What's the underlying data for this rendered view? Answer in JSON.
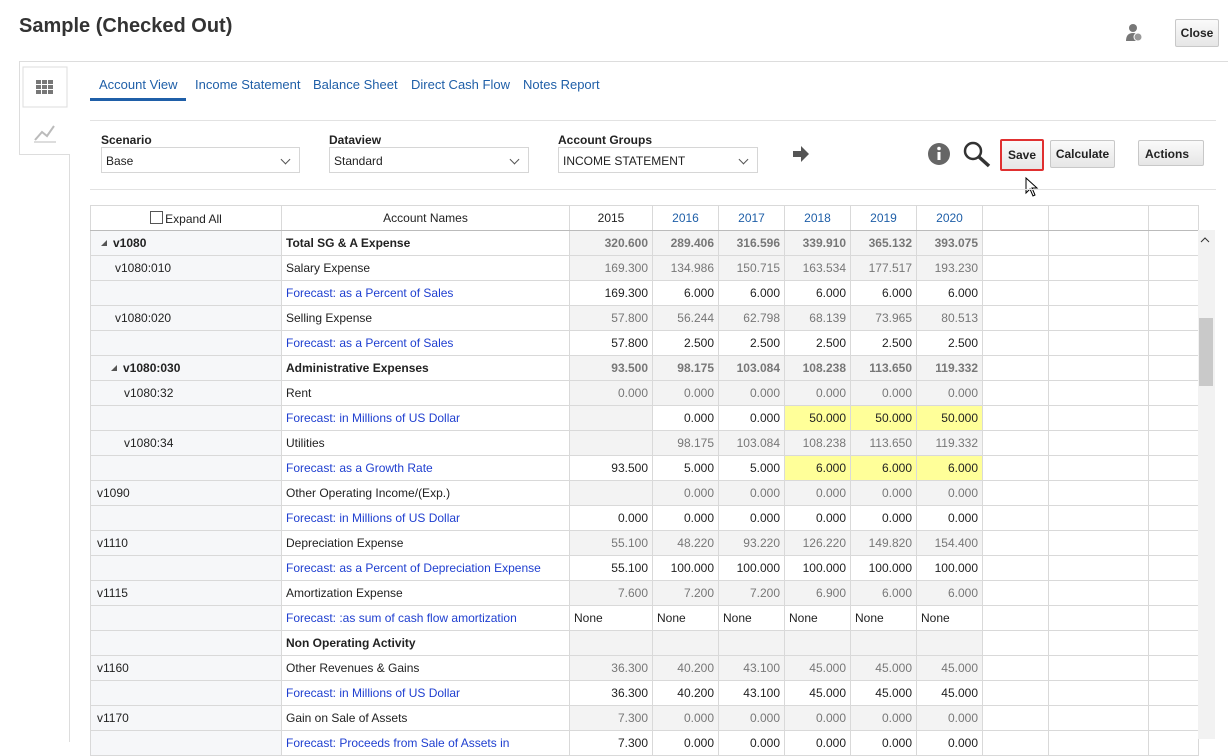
{
  "header": {
    "title": "Sample (Checked Out)",
    "close": "Close"
  },
  "tabs": [
    "Account View",
    "Income Statement",
    "Balance Sheet",
    "Direct Cash Flow",
    "Notes Report"
  ],
  "filters": [
    {
      "label": "Scenario",
      "value": "Base"
    },
    {
      "label": "Dataview",
      "value": "Standard"
    },
    {
      "label": "Account Groups",
      "value": "INCOME STATEMENT"
    }
  ],
  "buttons": {
    "save": "Save",
    "calculate": "Calculate",
    "actions": "Actions"
  },
  "table": {
    "headers": [
      "Expand All",
      "Account Names",
      "2015",
      "2016",
      "2017",
      "2018",
      "2019",
      "2020"
    ],
    "rows": [
      {
        "id": "v1080",
        "name": "Total SG & A Expense",
        "kind": "total",
        "depth": 0,
        "expandable": true,
        "values": [
          "320.600",
          "289.406",
          "316.596",
          "339.910",
          "365.132",
          "393.075"
        ]
      },
      {
        "id": "v1080:010",
        "name": "Salary Expense",
        "kind": "actual",
        "depth": 1,
        "values": [
          "169.300",
          "134.986",
          "150.715",
          "163.534",
          "177.517",
          "193.230"
        ]
      },
      {
        "name": "Forecast: as a Percent of Sales",
        "kind": "forecast",
        "values": [
          "169.300",
          "6.000",
          "6.000",
          "6.000",
          "6.000",
          "6.000"
        ]
      },
      {
        "id": "v1080:020",
        "name": "Selling Expense",
        "kind": "actual",
        "depth": 1,
        "values": [
          "57.800",
          "56.244",
          "62.798",
          "68.139",
          "73.965",
          "80.513"
        ]
      },
      {
        "name": "Forecast: as a Percent of Sales",
        "kind": "forecast",
        "values": [
          "57.800",
          "2.500",
          "2.500",
          "2.500",
          "2.500",
          "2.500"
        ]
      },
      {
        "id": "v1080:030",
        "name": "Administrative Expenses",
        "kind": "total",
        "depth": 1,
        "expandable": true,
        "values": [
          "93.500",
          "98.175",
          "103.084",
          "108.238",
          "113.650",
          "119.332"
        ]
      },
      {
        "id": "v1080:32",
        "name": "Rent",
        "kind": "actual",
        "depth": 2,
        "values": [
          "0.000",
          "0.000",
          "0.000",
          "0.000",
          "0.000",
          "0.000"
        ]
      },
      {
        "name": "Forecast: in Millions of US Dollar",
        "kind": "forecast",
        "highlight": true,
        "values": [
          null,
          "0.000",
          "0.000",
          "50.000",
          "50.000",
          "50.000"
        ]
      },
      {
        "id": "v1080:34",
        "name": "Utilities",
        "kind": "actual",
        "depth": 2,
        "values": [
          null,
          "98.175",
          "103.084",
          "108.238",
          "113.650",
          "119.332"
        ]
      },
      {
        "name": "Forecast: as a Growth Rate",
        "kind": "forecast",
        "highlight": true,
        "values": [
          "93.500",
          "5.000",
          "5.000",
          "6.000",
          "6.000",
          "6.000"
        ]
      },
      {
        "id": "v1090",
        "name": "Other Operating Income/(Exp.)",
        "kind": "actual",
        "depth": 0,
        "values": [
          null,
          "0.000",
          "0.000",
          "0.000",
          "0.000",
          "0.000"
        ]
      },
      {
        "name": "Forecast: in Millions of US Dollar",
        "kind": "forecast",
        "values": [
          "0.000",
          "0.000",
          "0.000",
          "0.000",
          "0.000",
          "0.000"
        ]
      },
      {
        "id": "v1110",
        "name": "Depreciation Expense",
        "kind": "actual",
        "depth": 0,
        "values": [
          "55.100",
          "48.220",
          "93.220",
          "126.220",
          "149.820",
          "154.400"
        ]
      },
      {
        "name": "Forecast: as a Percent of Depreciation Expense",
        "kind": "forecast",
        "values": [
          "55.100",
          "100.000",
          "100.000",
          "100.000",
          "100.000",
          "100.000"
        ]
      },
      {
        "id": "v1115",
        "name": "Amortization Expense",
        "kind": "actual",
        "depth": 0,
        "values": [
          "7.600",
          "7.200",
          "7.200",
          "6.900",
          "6.000",
          "6.000"
        ]
      },
      {
        "name": "Forecast: :as sum of cash flow amortization",
        "kind": "forecast",
        "text": true,
        "values": [
          "None",
          "None",
          "None",
          "None",
          "None",
          "None"
        ]
      },
      {
        "name": "Non Operating Activity",
        "kind": "section",
        "values": [
          null,
          null,
          null,
          null,
          null,
          null
        ]
      },
      {
        "id": "v1160",
        "name": "Other Revenues & Gains",
        "kind": "actual",
        "depth": 0,
        "values": [
          "36.300",
          "40.200",
          "43.100",
          "45.000",
          "45.000",
          "45.000"
        ]
      },
      {
        "name": "Forecast: in Millions of US Dollar",
        "kind": "forecast",
        "values": [
          "36.300",
          "40.200",
          "43.100",
          "45.000",
          "45.000",
          "45.000"
        ]
      },
      {
        "id": "v1170",
        "name": "Gain on Sale of Assets",
        "kind": "actual",
        "depth": 0,
        "values": [
          "7.300",
          "0.000",
          "0.000",
          "0.000",
          "0.000",
          "0.000"
        ]
      },
      {
        "name": "Forecast: Proceeds from Sale of Assets in",
        "kind": "forecast",
        "values": [
          "7.300",
          "0.000",
          "0.000",
          "0.000",
          "0.000",
          "0.000"
        ]
      }
    ]
  }
}
